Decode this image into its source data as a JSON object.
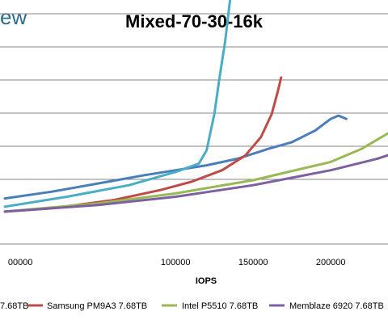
{
  "logo_text": "ew",
  "chart_data": {
    "type": "line",
    "title": "Mixed-70-30-16k",
    "xlabel": "IOPS",
    "ylabel": "",
    "xlim": [
      -10000,
      240000
    ],
    "ylim": [
      0,
      7
    ],
    "x_ticks": [
      0,
      100000,
      150000,
      200000
    ],
    "x_tick_labels": [
      "00000",
      "100000",
      "150000",
      "200000"
    ],
    "y_gridlines": [
      1,
      2,
      3,
      4,
      5,
      6
    ],
    "grid": true,
    "legend_position": "bottom",
    "series": [
      {
        "name": "7.68TB",
        "color": "#4a7ebb",
        "x": [
          -10000,
          20000,
          50000,
          80000,
          100000,
          120000,
          140000,
          160000,
          175000,
          190000,
          200000,
          205000,
          210000
        ],
        "y": [
          0.45,
          0.65,
          0.9,
          1.15,
          1.3,
          1.45,
          1.65,
          1.95,
          2.15,
          2.5,
          2.85,
          2.95,
          2.85
        ]
      },
      {
        "name": "Samsung PM9A3 7.68TB",
        "color": "#be4b48",
        "x": [
          -10000,
          20000,
          60000,
          90000,
          110000,
          130000,
          145000,
          155000,
          162000,
          166000,
          168000
        ],
        "y": [
          0.05,
          0.15,
          0.4,
          0.7,
          0.95,
          1.3,
          1.75,
          2.3,
          3.0,
          3.7,
          4.1
        ]
      },
      {
        "name": "Intel P5510 7.68TB",
        "color": "#98b954",
        "x": [
          -10000,
          50000,
          100000,
          150000,
          200000,
          220000,
          240000
        ],
        "y": [
          0.05,
          0.3,
          0.6,
          1.0,
          1.55,
          1.95,
          2.5
        ]
      },
      {
        "name": "Memblaze 6920 7.68TB",
        "color": "#7d60a0",
        "x": [
          -10000,
          50000,
          100000,
          150000,
          200000,
          230000,
          240000
        ],
        "y": [
          0.05,
          0.25,
          0.5,
          0.85,
          1.3,
          1.65,
          1.8
        ]
      },
      {
        "name": "",
        "color": "#4bacc6",
        "x": [
          -10000,
          30000,
          70000,
          100000,
          115000,
          120000,
          125000,
          128000,
          132000,
          135000,
          137000
        ],
        "y": [
          0.2,
          0.5,
          0.85,
          1.25,
          1.5,
          1.9,
          3.0,
          4.0,
          5.2,
          6.4,
          6.8
        ]
      }
    ]
  }
}
